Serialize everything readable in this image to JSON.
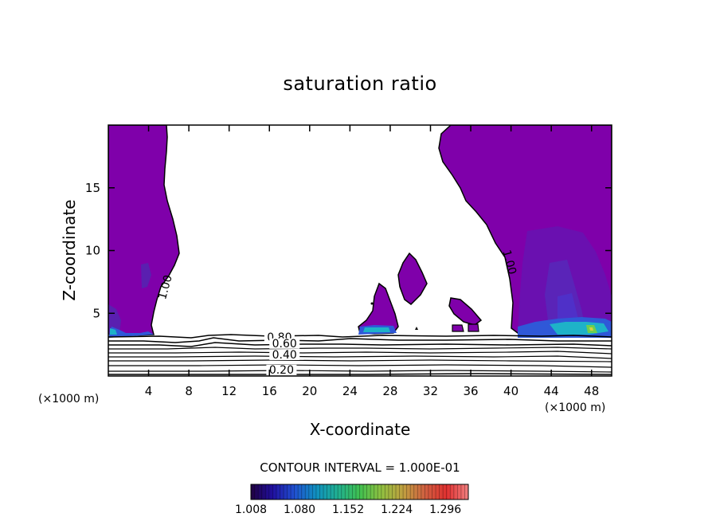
{
  "chart_data": {
    "type": "contour",
    "title": "saturation ratio",
    "xlabel": "X-coordinate",
    "ylabel": "Z-coordinate",
    "x_unit": "(×1000 m)",
    "y_unit": "(×1000 m)",
    "xlim": [
      0,
      50
    ],
    "ylim": [
      0,
      20
    ],
    "x_ticks": [
      4,
      8,
      12,
      16,
      20,
      24,
      28,
      32,
      36,
      40,
      44,
      48
    ],
    "y_ticks": [
      5,
      10,
      15
    ],
    "contour_labels": [
      {
        "text": "1.00",
        "x": 6.0,
        "y": 7.0
      },
      {
        "text": "1.00",
        "x": 39.5,
        "y": 9.0
      },
      {
        "text": "0.80",
        "x": 17.0,
        "y": 2.8
      },
      {
        "text": "0.60",
        "x": 17.5,
        "y": 2.3
      },
      {
        "text": "0.40",
        "x": 17.5,
        "y": 1.4
      },
      {
        "text": "0.20",
        "x": 17.2,
        "y": 0.2
      }
    ],
    "contour_interval": "CONTOUR INTERVAL = 1.000E-01",
    "colorbar": {
      "min": 1.008,
      "max": 1.33,
      "tick_labels": [
        "1.008",
        "1.080",
        "1.152",
        "1.224",
        "1.296"
      ],
      "colors": [
        "#200040",
        "#2010a0",
        "#2050d0",
        "#1090c0",
        "#20b090",
        "#40c050",
        "#90c040",
        "#c0a040",
        "#d06040",
        "#e03030",
        "#f08080"
      ]
    },
    "supersaturated_fill": "#7f00aa"
  }
}
